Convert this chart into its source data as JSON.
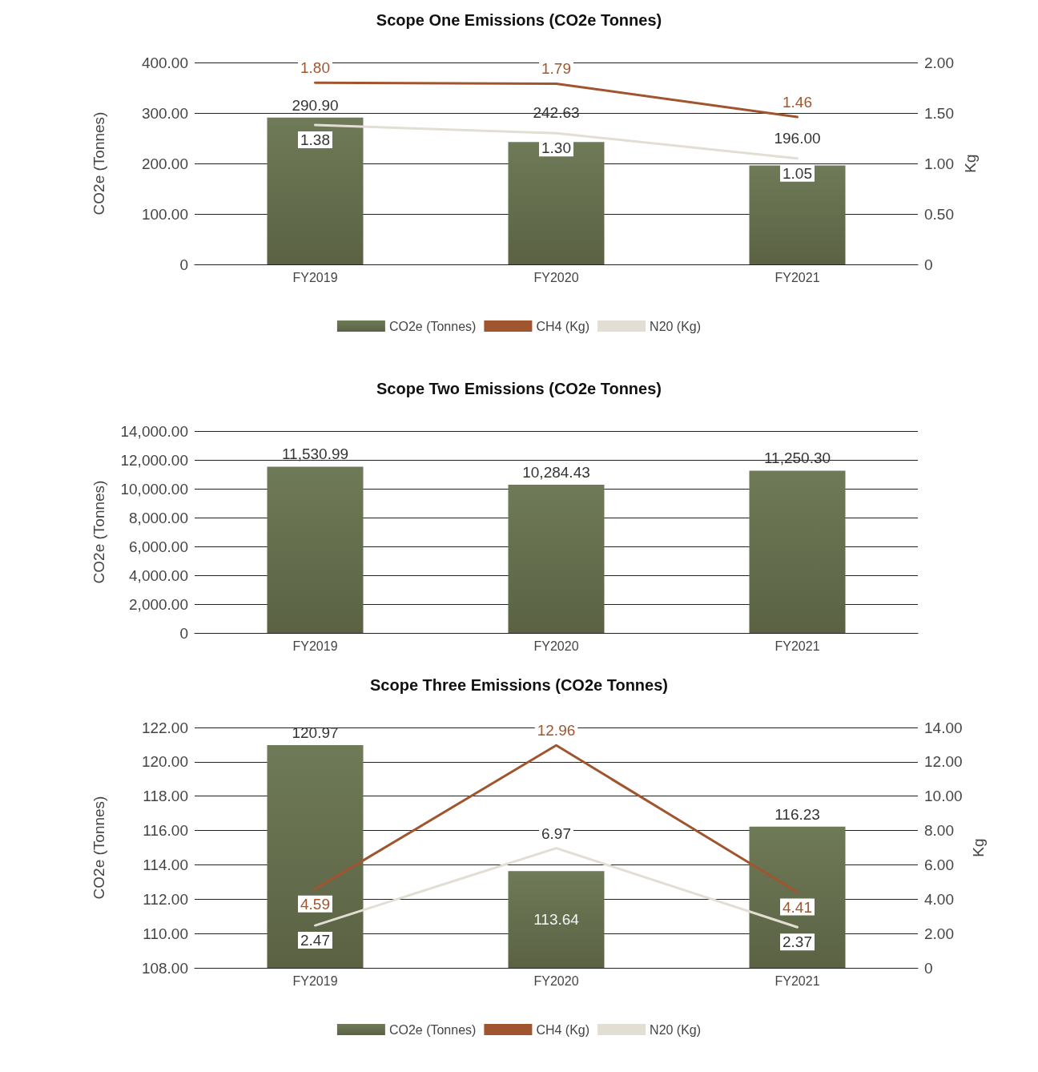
{
  "chart_data": [
    {
      "type": "bar",
      "title": "Scope One Emissions (CO2e Tonnes)",
      "ylabel": "CO2e (Tonnes)",
      "y2label": "Kg",
      "categories": [
        "FY2019",
        "FY2020",
        "FY2021"
      ],
      "series": [
        {
          "name": "CO2e (Tonnes)",
          "color": "#6f7a58",
          "values": [
            290.9,
            242.63,
            196.0
          ],
          "value_labels": [
            "290.90",
            "242.63",
            "196.00"
          ]
        },
        {
          "name": "CH4 (Kg)",
          "type": "line",
          "axis": "y2",
          "color": "#a0552f",
          "values": [
            1.8,
            1.79,
            1.46
          ],
          "value_labels": [
            "1.80",
            "1.79",
            "1.46"
          ]
        },
        {
          "name": "N20 (Kg)",
          "type": "line",
          "axis": "y2",
          "color": "#e3ded3",
          "values": [
            1.38,
            1.3,
            1.05
          ],
          "value_labels": [
            "1.38",
            "1.30",
            "1.05"
          ]
        }
      ],
      "ylim": [
        0,
        400
      ],
      "yticks": [
        0,
        {
          "value": 100,
          "label": "100.00"
        },
        {
          "value": 200,
          "label": "200.00"
        },
        {
          "value": 300,
          "label": "300.00"
        },
        {
          "value": 400,
          "label": "400.00"
        }
      ],
      "y2lim": [
        0,
        2
      ],
      "y2ticks": [
        0,
        {
          "value": 0.5,
          "label": "0.50"
        },
        {
          "value": 1,
          "label": "1.00"
        },
        {
          "value": 1.5,
          "label": "1.50"
        },
        {
          "value": 2,
          "label": "2.00"
        }
      ],
      "grid": "y",
      "legend": "bottom",
      "marker": "none",
      "line_style": "solid"
    },
    {
      "type": "bar",
      "title": "Scope Two Emissions (CO2e Tonnes)",
      "ylabel": "CO2e (Tonnes)",
      "categories": [
        "FY2019",
        "FY2020",
        "FY2021"
      ],
      "values": [
        11530.99,
        10284.43,
        11250.3
      ],
      "value_labels": [
        "11,530.99",
        "10,284.43",
        "11,250.30"
      ],
      "color": "#6f7a58",
      "ylim": [
        0,
        14000
      ],
      "yticks": [
        0,
        {
          "value": 2000,
          "label": "2,000.00"
        },
        {
          "value": 4000,
          "label": "4,000.00"
        },
        {
          "value": 6000,
          "label": "6,000.00"
        },
        {
          "value": 8000,
          "label": "8,000.00"
        },
        {
          "value": 10000,
          "label": "10,000.00"
        },
        {
          "value": 12000,
          "label": "12,000.00"
        },
        {
          "value": 14000,
          "label": "14,000.00"
        }
      ],
      "grid": "y",
      "legend": false
    },
    {
      "type": "bar",
      "title": "Scope Three Emissions (CO2e Tonnes)",
      "ylabel": "CO2e (Tonnes)",
      "y2label": "Kg",
      "categories": [
        "FY2019",
        "FY2020",
        "FY2021"
      ],
      "series": [
        {
          "name": "CO2e (Tonnes)",
          "color": "#6f7a58",
          "values": [
            120.97,
            113.64,
            116.23
          ],
          "value_labels": [
            "120.97",
            "113.64",
            "116.23"
          ]
        },
        {
          "name": "CH4 (Kg)",
          "type": "line",
          "axis": "y2",
          "color": "#a0552f",
          "values": [
            4.59,
            12.96,
            4.41
          ],
          "value_labels": [
            "4.59",
            "12.96",
            "4.41"
          ]
        },
        {
          "name": "N20 (Kg)",
          "type": "line",
          "axis": "y2",
          "color": "#e3ded3",
          "values": [
            2.47,
            6.97,
            2.37
          ],
          "value_labels": [
            "2.47",
            "6.97",
            "2.37"
          ]
        }
      ],
      "ylim": [
        108,
        122
      ],
      "yticks": [
        {
          "value": 108,
          "label": "108.00"
        },
        {
          "value": 110,
          "label": "110.00"
        },
        {
          "value": 112,
          "label": "112.00"
        },
        {
          "value": 114,
          "label": "114.00"
        },
        {
          "value": 116,
          "label": "116.00"
        },
        {
          "value": 118,
          "label": "118.00"
        },
        {
          "value": 120,
          "label": "120.00"
        },
        {
          "value": 122,
          "label": "122.00"
        }
      ],
      "y2lim": [
        0,
        14
      ],
      "y2ticks": [
        0,
        {
          "value": 2,
          "label": "2.00"
        },
        {
          "value": 4,
          "label": "4.00"
        },
        {
          "value": 6,
          "label": "6.00"
        },
        {
          "value": 8,
          "label": "8.00"
        },
        {
          "value": 10,
          "label": "10.00"
        },
        {
          "value": 12,
          "label": "12.00"
        },
        {
          "value": 14,
          "label": "14.00"
        }
      ],
      "grid": "y",
      "legend": "bottom",
      "marker": "none",
      "line_style": "solid"
    }
  ]
}
